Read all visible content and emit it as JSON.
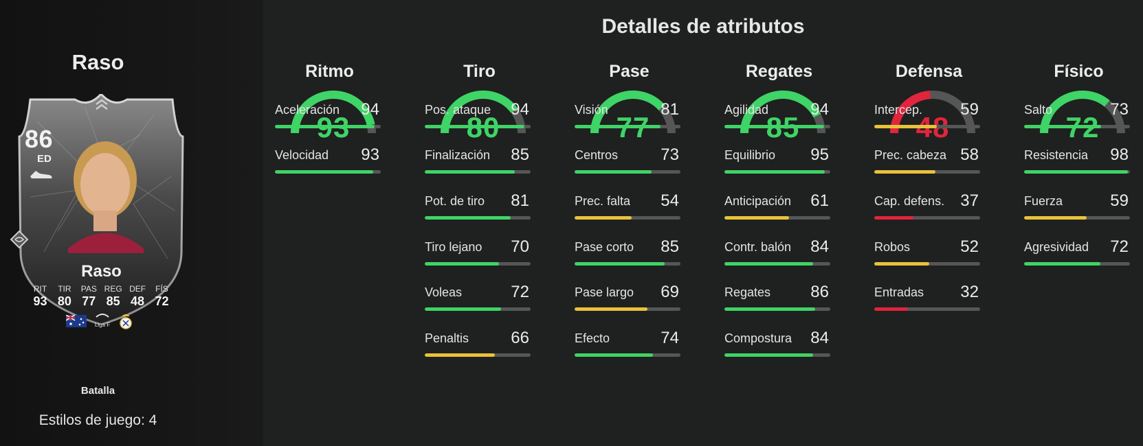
{
  "colors": {
    "high": "#3fd466",
    "mid": "#e8c23a",
    "low": "#e0253d",
    "track": "#565656"
  },
  "player": {
    "name": "Raso",
    "rating": "86",
    "position": "ED",
    "card_name": "Raso",
    "stat_labels": [
      "RIT",
      "TIR",
      "PAS",
      "REG",
      "DEF",
      "FÍS"
    ],
    "stat_values": [
      "93",
      "80",
      "77",
      "85",
      "48",
      "72"
    ],
    "league_badge": "Liga F",
    "icons": [
      "chevron-up-icon",
      "boot-icon",
      "australia-flag-icon",
      "liga-f-logo",
      "real-madrid-crest"
    ],
    "playstyle": "Batalla",
    "playstyles_count": "Estilos de juego: 4"
  },
  "attributes_title": "Detalles de atributos",
  "categories": [
    {
      "name": "Ritmo",
      "value": 93,
      "rating_color": "high",
      "stats": [
        {
          "name": "Aceleración",
          "value": 94
        },
        {
          "name": "Velocidad",
          "value": 93
        }
      ]
    },
    {
      "name": "Tiro",
      "value": 80,
      "rating_color": "high",
      "stats": [
        {
          "name": "Pos. ataque",
          "value": 94
        },
        {
          "name": "Finalización",
          "value": 85
        },
        {
          "name": "Pot. de tiro",
          "value": 81
        },
        {
          "name": "Tiro lejano",
          "value": 70
        },
        {
          "name": "Voleas",
          "value": 72
        },
        {
          "name": "Penaltis",
          "value": 66
        }
      ]
    },
    {
      "name": "Pase",
      "value": 77,
      "rating_color": "high",
      "stats": [
        {
          "name": "Visión",
          "value": 81
        },
        {
          "name": "Centros",
          "value": 73
        },
        {
          "name": "Prec. falta",
          "value": 54
        },
        {
          "name": "Pase corto",
          "value": 85
        },
        {
          "name": "Pase largo",
          "value": 69
        },
        {
          "name": "Efecto",
          "value": 74
        }
      ]
    },
    {
      "name": "Regates",
      "value": 85,
      "rating_color": "high",
      "stats": [
        {
          "name": "Agilidad",
          "value": 94
        },
        {
          "name": "Equilibrio",
          "value": 95
        },
        {
          "name": "Anticipación",
          "value": 61
        },
        {
          "name": "Contr. balón",
          "value": 84
        },
        {
          "name": "Regates",
          "value": 86
        },
        {
          "name": "Compostura",
          "value": 84
        }
      ]
    },
    {
      "name": "Defensa",
      "value": 48,
      "rating_color": "low",
      "stats": [
        {
          "name": "Intercep.",
          "value": 59
        },
        {
          "name": "Prec. cabeza",
          "value": 58
        },
        {
          "name": "Cap. defens.",
          "value": 37
        },
        {
          "name": "Robos",
          "value": 52
        },
        {
          "name": "Entradas",
          "value": 32
        }
      ]
    },
    {
      "name": "Físico",
      "value": 72,
      "rating_color": "high",
      "stats": [
        {
          "name": "Salto",
          "value": 73
        },
        {
          "name": "Resistencia",
          "value": 98
        },
        {
          "name": "Fuerza",
          "value": 59
        },
        {
          "name": "Agresividad",
          "value": 72
        }
      ]
    }
  ]
}
